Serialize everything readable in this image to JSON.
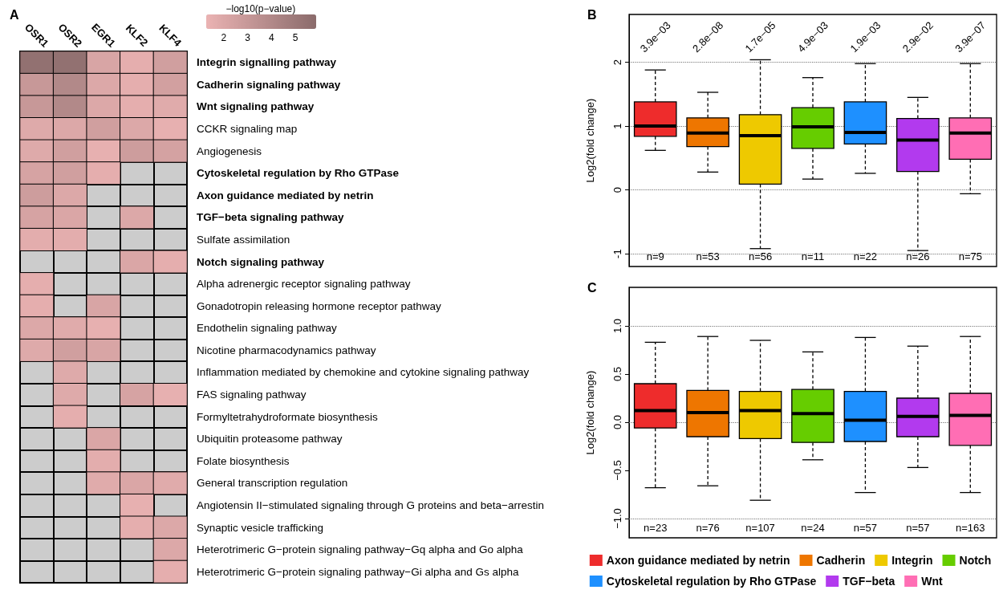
{
  "chart_data": [
    {
      "type": "heatmap",
      "annotations": [
        "A"
      ],
      "clabel": "−log10(p−value)",
      "clim": [
        1.3,
        5.9
      ],
      "cticks": [
        2,
        3,
        4,
        5
      ],
      "grid": true,
      "categories": [
        "OSR1",
        "OSR2",
        "EGR1",
        "KLF2",
        "KLF4"
      ],
      "y_categories": [
        "Integrin signalling pathway",
        "Cadherin signaling pathway",
        "Wnt signaling pathway",
        "CCKR signaling map",
        "Angiogenesis",
        "Cytoskeletal regulation by Rho GTPase",
        "Axon guidance mediated by netrin",
        "TGF−beta signaling pathway",
        "Sulfate assimilation",
        "Notch signaling pathway",
        "Alpha adrenergic receptor signaling pathway",
        "Gonadotropin releasing hormone receptor pathway",
        "Endothelin signaling pathway",
        "Nicotine pharmacodynamics pathway",
        "Inflammation mediated by chemokine and cytokine signaling pathway",
        "FAS signaling pathway",
        "Formyltetrahydroformate biosynthesis",
        "Ubiquitin proteasome pathway",
        "Folate biosynthesis",
        "General transcription regulation",
        "Angiotensin II−stimulated signaling through G proteins and beta−arrestin",
        "Synaptic vesicle trafficking",
        "Heterotrimeric G−protein signaling pathway−Gq alpha and Go alpha",
        "Heterotrimeric G−protein signaling pathway−Gi alpha and Gs alpha"
      ],
      "cells": [
        [
          5.5,
          5.5,
          2.2,
          1.6,
          2.6
        ],
        [
          3.0,
          4.0,
          2.0,
          1.6,
          2.5
        ],
        [
          3.0,
          4.0,
          2.0,
          1.6,
          1.8
        ],
        [
          1.9,
          2.0,
          2.6,
          2.0,
          1.5
        ],
        [
          1.9,
          2.6,
          1.5,
          2.7,
          2.4
        ],
        [
          2.3,
          2.6,
          1.6,
          null,
          null
        ],
        [
          2.7,
          2.0,
          null,
          null,
          null
        ],
        [
          2.3,
          2.1,
          null,
          2.0,
          null
        ],
        [
          1.7,
          1.7,
          null,
          null,
          null
        ],
        [
          null,
          null,
          null,
          2.1,
          1.6
        ],
        [
          1.6,
          null,
          null,
          null,
          null
        ],
        [
          1.6,
          null,
          2.2,
          null,
          null
        ],
        [
          2.0,
          1.8,
          1.5,
          null,
          null
        ],
        [
          1.9,
          2.6,
          2.2,
          null,
          null
        ],
        [
          null,
          1.9,
          null,
          null,
          null
        ],
        [
          null,
          1.9,
          null,
          2.3,
          1.5
        ],
        [
          null,
          1.6,
          null,
          null,
          null
        ],
        [
          null,
          null,
          2.1,
          null,
          null
        ],
        [
          null,
          null,
          1.7,
          null,
          null
        ],
        [
          null,
          null,
          1.8,
          2.1,
          1.8
        ],
        [
          null,
          null,
          null,
          1.5,
          null
        ],
        [
          null,
          null,
          null,
          1.6,
          2.0
        ],
        [
          null,
          null,
          null,
          null,
          2.0
        ],
        [
          null,
          null,
          null,
          null,
          1.6
        ]
      ]
    },
    {
      "type": "box",
      "ylabel": "Log2(fold change)",
      "ylim": [
        -1.2,
        2.75
      ],
      "yticks": [
        -1,
        0,
        1,
        2
      ],
      "grid": "y",
      "categories": [
        "n=9",
        "n=53",
        "n=56",
        "n=11",
        "n=22",
        "n=26",
        "n=75"
      ],
      "annotations": [
        "B",
        "3.9e−03",
        "2.8e−08",
        "1.7e−05",
        "4.9e−03",
        "1.9e−03",
        "2.9e−02",
        "3.9e−07"
      ],
      "series": [
        {
          "color": "#ee2c2c",
          "boxes": [
            {
              "low": 0.62,
              "q1": 0.84,
              "median": 1.0,
              "q3": 1.38,
              "high": 1.88
            },
            null,
            null,
            null,
            null,
            null,
            null
          ]
        },
        {
          "color": "#ee7600",
          "boxes": [
            null,
            {
              "low": 0.28,
              "q1": 0.68,
              "median": 0.89,
              "q3": 1.13,
              "high": 1.53
            },
            null,
            null,
            null,
            null,
            null
          ]
        },
        {
          "color": "#eec900",
          "boxes": [
            null,
            null,
            {
              "low": -0.92,
              "q1": 0.09,
              "median": 0.85,
              "q3": 1.18,
              "high": 2.04
            },
            null,
            null,
            null,
            null
          ]
        },
        {
          "color": "#66cd00",
          "boxes": [
            null,
            null,
            null,
            {
              "low": 0.17,
              "q1": 0.65,
              "median": 0.99,
              "q3": 1.29,
              "high": 1.76
            },
            null,
            null,
            null
          ]
        },
        {
          "color": "#1e90ff",
          "boxes": [
            null,
            null,
            null,
            null,
            {
              "low": 0.26,
              "q1": 0.72,
              "median": 0.9,
              "q3": 1.38,
              "high": 1.98
            },
            null,
            null
          ]
        },
        {
          "color": "#b23aee",
          "boxes": [
            null,
            null,
            null,
            null,
            null,
            {
              "low": -0.95,
              "q1": 0.29,
              "median": 0.78,
              "q3": 1.12,
              "high": 1.45
            },
            null
          ]
        },
        {
          "color": "#ff6eb4",
          "boxes": [
            null,
            null,
            null,
            null,
            null,
            null,
            {
              "low": -0.06,
              "q1": 0.48,
              "median": 0.89,
              "q3": 1.13,
              "high": 1.98
            }
          ]
        }
      ]
    },
    {
      "type": "box",
      "ylabel": "Log2(fold change)",
      "ylim": [
        -1.2,
        1.4
      ],
      "yticks": [
        {
          "value": -1,
          "label": "−1.0"
        },
        {
          "value": -0.5,
          "label": "−0.5"
        },
        {
          "value": 0,
          "label": "0.0"
        },
        {
          "value": 0.5,
          "label": "0.5"
        },
        {
          "value": 1,
          "label": "1.0"
        }
      ],
      "legend": "bottom",
      "annotations": [
        "C"
      ],
      "ref_lines": [
        {
          "axis": "y",
          "value": 1,
          "line_style": "dotted"
        },
        {
          "axis": "y",
          "value": 0,
          "line_style": "dotted"
        },
        {
          "axis": "y",
          "value": -1,
          "line_style": "dotted"
        }
      ],
      "categories": [
        "n=23",
        "n=76",
        "n=107",
        "n=24",
        "n=57",
        "n=57",
        "n=163"
      ],
      "series": [
        {
          "name": "Axon guidance mediated by netrin",
          "color": "#ee2c2c",
          "boxes": [
            {
              "low": -0.68,
              "q1": -0.06,
              "median": 0.12,
              "q3": 0.4,
              "high": 0.83
            },
            null,
            null,
            null,
            null,
            null,
            null
          ]
        },
        {
          "name": "Cadherin",
          "color": "#ee7600",
          "boxes": [
            null,
            {
              "low": -0.66,
              "q1": -0.15,
              "median": 0.1,
              "q3": 0.33,
              "high": 0.89
            },
            null,
            null,
            null,
            null,
            null
          ]
        },
        {
          "name": "Integrin",
          "color": "#eec900",
          "boxes": [
            null,
            null,
            {
              "low": -0.81,
              "q1": -0.17,
              "median": 0.12,
              "q3": 0.32,
              "high": 0.85
            },
            null,
            null,
            null,
            null
          ]
        },
        {
          "name": "Notch",
          "color": "#66cd00",
          "boxes": [
            null,
            null,
            null,
            {
              "low": -0.39,
              "q1": -0.21,
              "median": 0.09,
              "q3": 0.34,
              "high": 0.73
            },
            null,
            null,
            null
          ]
        },
        {
          "name": "Cytoskeletal regulation by Rho GTPase",
          "color": "#1e90ff",
          "boxes": [
            null,
            null,
            null,
            null,
            {
              "low": -0.73,
              "q1": -0.2,
              "median": 0.02,
              "q3": 0.32,
              "high": 0.88
            },
            null,
            null
          ]
        },
        {
          "name": "TGF−beta",
          "color": "#b23aee",
          "boxes": [
            null,
            null,
            null,
            null,
            null,
            {
              "low": -0.47,
              "q1": -0.15,
              "median": 0.06,
              "q3": 0.25,
              "high": 0.79
            },
            null
          ]
        },
        {
          "name": "Wnt",
          "color": "#ff6eb4",
          "boxes": [
            null,
            null,
            null,
            null,
            null,
            null,
            {
              "low": -0.73,
              "q1": -0.24,
              "median": 0.07,
              "q3": 0.3,
              "high": 0.89
            }
          ]
        }
      ]
    }
  ]
}
